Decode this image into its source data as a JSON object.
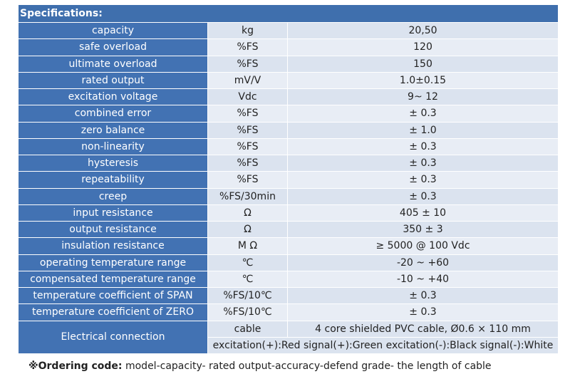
{
  "header": {
    "title": "Specifications:"
  },
  "rows": [
    {
      "param": "capacity",
      "unit": "kg",
      "value": "20,50"
    },
    {
      "param": "safe overload",
      "unit": "%FS",
      "value": "120"
    },
    {
      "param": "ultimate overload",
      "unit": "%FS",
      "value": "150"
    },
    {
      "param": "rated output",
      "unit": "mV/V",
      "value": "1.0±0.15"
    },
    {
      "param": "excitation voltage",
      "unit": "Vdc",
      "value": "9~ 12"
    },
    {
      "param": "combined error",
      "unit": "%FS",
      "value": "± 0.3"
    },
    {
      "param": "zero balance",
      "unit": "%FS",
      "value": "± 1.0"
    },
    {
      "param": "non-linearity",
      "unit": "%FS",
      "value": "± 0.3"
    },
    {
      "param": "hysteresis",
      "unit": "%FS",
      "value": "± 0.3"
    },
    {
      "param": "repeatability",
      "unit": "%FS",
      "value": "± 0.3"
    },
    {
      "param": "creep",
      "unit": "%FS/30min",
      "value": "± 0.3"
    },
    {
      "param": "input resistance",
      "unit": "Ω",
      "value": "405 ± 10"
    },
    {
      "param": "output resistance",
      "unit": "Ω",
      "value": "350 ± 3"
    },
    {
      "param": "insulation resistance",
      "unit": "M Ω",
      "value": "≥ 5000 @ 100 Vdc"
    },
    {
      "param": "operating temperature range",
      "unit": "℃",
      "value": "-20 ~ +60"
    },
    {
      "param": "compensated temperature range",
      "unit": "℃",
      "value": "-10 ~ +40"
    },
    {
      "param": "temperature coefficient of SPAN",
      "unit": "%FS/10℃",
      "value": "± 0.3"
    },
    {
      "param": "temperature coefficient of ZERO",
      "unit": "%FS/10℃",
      "value": "± 0.3"
    }
  ],
  "electrical": {
    "param": "Electrical connection",
    "unit": "cable",
    "value": "4 core shielded PVC cable, Ø0.6 × 110 mm",
    "wiring": "excitation(+):Red signal(+):Green excitation(-):Black signal(-):White"
  },
  "ordering": {
    "label": "※Ordering code:",
    "text": " model-capacity- rated output-accuracy-defend grade- the length of cable"
  }
}
